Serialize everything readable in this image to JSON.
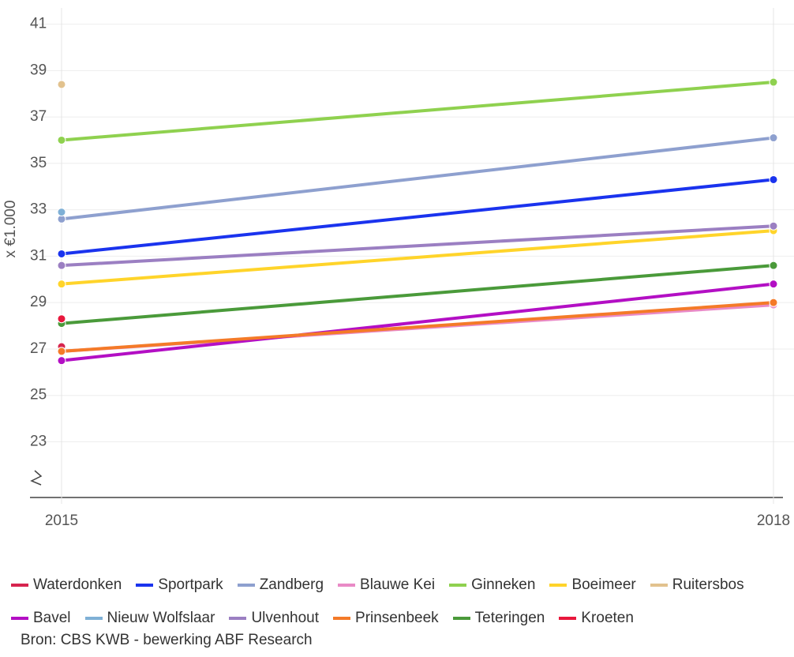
{
  "chart_data": {
    "type": "line",
    "y_label": "x €1.000",
    "x": [
      2015,
      2018
    ],
    "xlim": [
      2015,
      2018
    ],
    "xticks": [
      2015,
      2018
    ],
    "ylim": [
      20.6,
      41.7
    ],
    "yticks": [
      23,
      25,
      27,
      29,
      31,
      33,
      35,
      37,
      39,
      41
    ],
    "grid": true,
    "series": [
      {
        "name": "Waterdonken",
        "color": "#d6244e",
        "values": [
          27.1,
          null
        ]
      },
      {
        "name": "Sportpark",
        "color": "#1a33ee",
        "values": [
          31.1,
          34.3
        ]
      },
      {
        "name": "Zandberg",
        "color": "#8ea0cf",
        "values": [
          32.6,
          36.1
        ]
      },
      {
        "name": "Blauwe Kei",
        "color": "#e98ac6",
        "values": [
          26.9,
          28.9
        ]
      },
      {
        "name": "Ginneken",
        "color": "#8fd14f",
        "values": [
          36.0,
          38.5
        ]
      },
      {
        "name": "Boeimeer",
        "color": "#ffd42a",
        "values": [
          29.8,
          32.1
        ]
      },
      {
        "name": "Ruitersbos",
        "color": "#e2c28e",
        "values": [
          38.4,
          null
        ]
      },
      {
        "name": "Bavel",
        "color": "#b30fc4",
        "values": [
          26.5,
          29.8
        ]
      },
      {
        "name": "Nieuw Wolfslaar",
        "color": "#7fb0d6",
        "values": [
          32.9,
          null
        ]
      },
      {
        "name": "Ulvenhout",
        "color": "#9b7fc2",
        "values": [
          30.6,
          32.3
        ]
      },
      {
        "name": "Prinsenbeek",
        "color": "#f47a28",
        "values": [
          26.9,
          29.0
        ]
      },
      {
        "name": "Teteringen",
        "color": "#4a9a3a",
        "values": [
          28.1,
          30.6
        ]
      },
      {
        "name": "Kroeten",
        "color": "#e8173c",
        "values": [
          28.3,
          null
        ]
      }
    ],
    "source": "Bron: CBS KWB - bewerking ABF Research"
  }
}
